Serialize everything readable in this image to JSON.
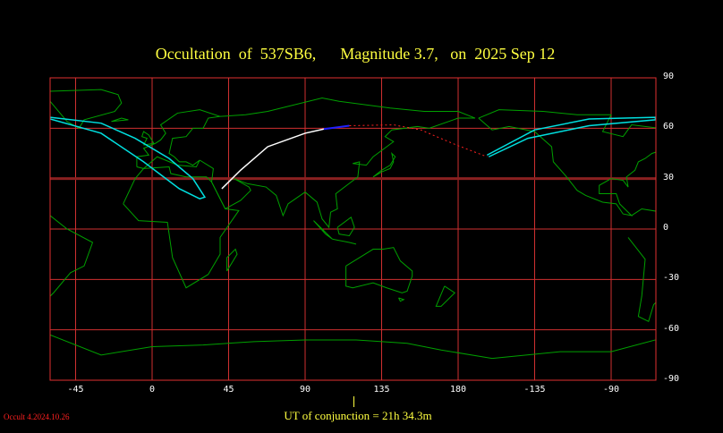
{
  "title": "Occultation  of  537SB6,      Magnitude 3.7,   on  2025 Sep 12",
  "map": {
    "projection": "equirectangular",
    "lat_labels": [
      "90",
      "60",
      "30",
      "0",
      "-30",
      "-60",
      "-90"
    ],
    "lon_labels": [
      "-45",
      "0",
      "45",
      "90",
      "135",
      "180",
      "-135",
      "-90"
    ],
    "colors": {
      "grid": "#e03030",
      "coast": "#00a000",
      "path_limits": "#00e0e0",
      "central_line": "#ffffff",
      "daylight_segment": "#2020ff",
      "below_horizon": "#ff2020"
    }
  },
  "footer": {
    "ut_conjunction": "UT of conjunction = 21h 34.3m",
    "version": "Occult 4.2024.10.26"
  }
}
